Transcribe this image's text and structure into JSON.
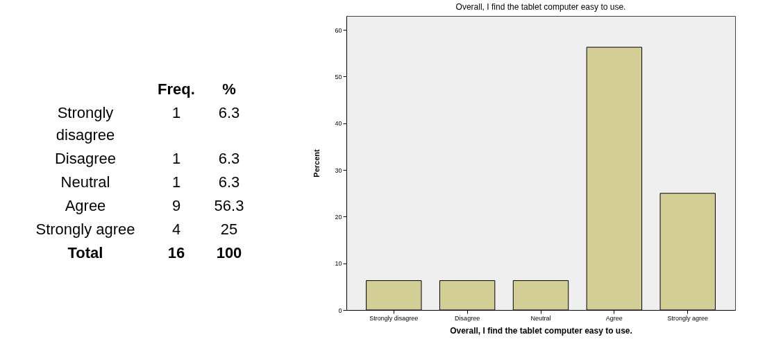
{
  "chart_data": [
    {
      "type": "other",
      "categories": [
        "Strongly disagree",
        "Disagree",
        "Neutral",
        "Agree",
        "Strongly agree",
        "Total"
      ],
      "series": [
        {
          "name": "Freq.",
          "values": [
            1,
            1,
            1,
            9,
            4,
            16
          ]
        },
        {
          "name": "%",
          "values": [
            6.3,
            6.3,
            6.3,
            56.3,
            25,
            100
          ]
        }
      ],
      "data_labels": true
    },
    {
      "type": "bar",
      "title": "Overall, I find the tablet computer easy to use.",
      "xlabel": "Overall, I find the tablet computer easy to use.",
      "ylabel": "Percent",
      "categories": [
        "Strongly disagree",
        "Disagree",
        "Neutral",
        "Agree",
        "Strongly agree"
      ],
      "values": [
        6.3,
        6.3,
        6.3,
        56.3,
        25
      ],
      "color": "#d3cd96",
      "ylim": [
        0,
        63
      ],
      "yticks": [
        0,
        10,
        20,
        30,
        40,
        50,
        60
      ],
      "grid": false
    }
  ]
}
